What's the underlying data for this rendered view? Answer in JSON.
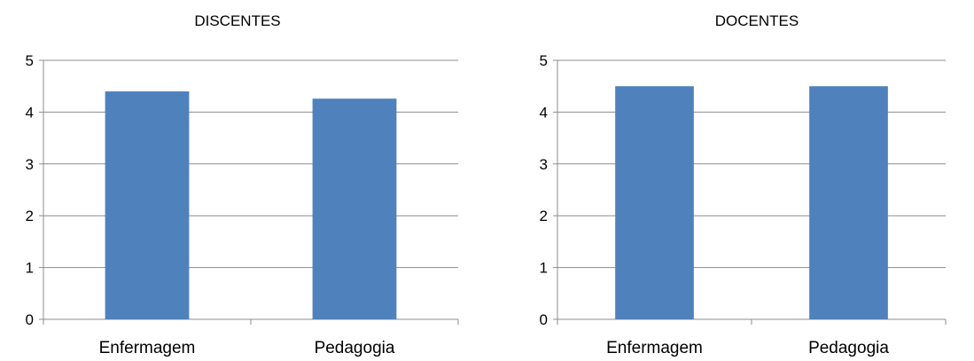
{
  "chart_data": [
    {
      "type": "bar",
      "title": "DISCENTES",
      "categories": [
        "Enfermagem",
        "Pedagogia"
      ],
      "values": [
        4.4,
        4.26
      ],
      "ylim": [
        0,
        5
      ],
      "yticks": [
        0,
        1,
        2,
        3,
        4,
        5
      ],
      "xlabel": "",
      "ylabel": "",
      "grid": true,
      "legend": "none",
      "bar_color": "#4f81bd"
    },
    {
      "type": "bar",
      "title": "DOCENTES",
      "categories": [
        "Enfermagem",
        "Pedagogia"
      ],
      "values": [
        4.5,
        4.5
      ],
      "ylim": [
        0,
        5
      ],
      "yticks": [
        0,
        1,
        2,
        3,
        4,
        5
      ],
      "xlabel": "",
      "ylabel": "",
      "grid": true,
      "legend": "none",
      "bar_color": "#4f81bd"
    }
  ]
}
